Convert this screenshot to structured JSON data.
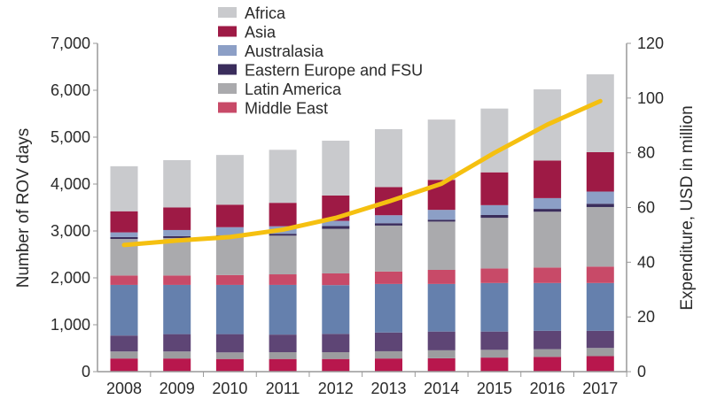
{
  "chart_data": {
    "type": "bar",
    "stacked": true,
    "categories": [
      "2008",
      "2009",
      "2010",
      "2011",
      "2012",
      "2013",
      "2014",
      "2015",
      "2016",
      "2017"
    ],
    "ylabel": "Number of ROV days",
    "y2label": "Expenditure, USD in million",
    "ylim": [
      0,
      7000
    ],
    "y2lim": [
      0,
      120
    ],
    "yticks": [
      "0",
      "1,000",
      "2,000",
      "3,000",
      "4,000",
      "5,000",
      "6,000",
      "7,000"
    ],
    "y2ticks": [
      "0",
      "20",
      "40",
      "60",
      "80",
      "100",
      "120"
    ],
    "grid": false,
    "legend_position": "top-center",
    "series": [
      {
        "color": "#b8174d",
        "values": [
          280,
          280,
          270,
          270,
          270,
          280,
          285,
          300,
          315,
          330
        ]
      },
      {
        "color": "#9c9c9f",
        "values": [
          150,
          150,
          140,
          145,
          145,
          155,
          170,
          165,
          165,
          175
        ]
      },
      {
        "color": "#5e4575",
        "values": [
          340,
          370,
          390,
          375,
          390,
          400,
          400,
          390,
          390,
          365
        ]
      },
      {
        "color": "#6580ad",
        "values": [
          1080,
          1050,
          1050,
          1060,
          1040,
          1035,
          1015,
          1035,
          1020,
          1020
        ]
      },
      {
        "name": "Middle East",
        "color": "#c84a68",
        "values": [
          200,
          200,
          210,
          225,
          250,
          265,
          300,
          310,
          330,
          350
        ]
      },
      {
        "name": "Latin America",
        "color": "#aaaaad",
        "values": [
          780,
          800,
          810,
          825,
          950,
          980,
          1030,
          1080,
          1190,
          1270
        ]
      },
      {
        "name": "Eastern Europe and FSU",
        "color": "#3a2d5c",
        "values": [
          40,
          40,
          40,
          40,
          60,
          50,
          40,
          60,
          60,
          70
        ]
      },
      {
        "name": "Australasia",
        "color": "#8c9fc6",
        "values": [
          100,
          130,
          170,
          160,
          110,
          170,
          210,
          210,
          230,
          260
        ]
      },
      {
        "name": "Asia",
        "color": "#9e1a45",
        "values": [
          450,
          480,
          480,
          500,
          540,
          600,
          640,
          700,
          800,
          840
        ]
      },
      {
        "name": "Africa",
        "color": "#c9cacd",
        "values": [
          960,
          1010,
          1060,
          1130,
          1170,
          1235,
          1285,
          1360,
          1520,
          1660
        ]
      }
    ],
    "line": {
      "axis": "right",
      "color": "#f5c010",
      "values": [
        46.3,
        47.9,
        49.2,
        51.9,
        56.2,
        62.2,
        68.7,
        80,
        90.3,
        98.9
      ]
    },
    "legend": [
      "Africa",
      "Asia",
      "Australasia",
      "Eastern Europe and FSU",
      "Latin America",
      "Middle East"
    ]
  }
}
